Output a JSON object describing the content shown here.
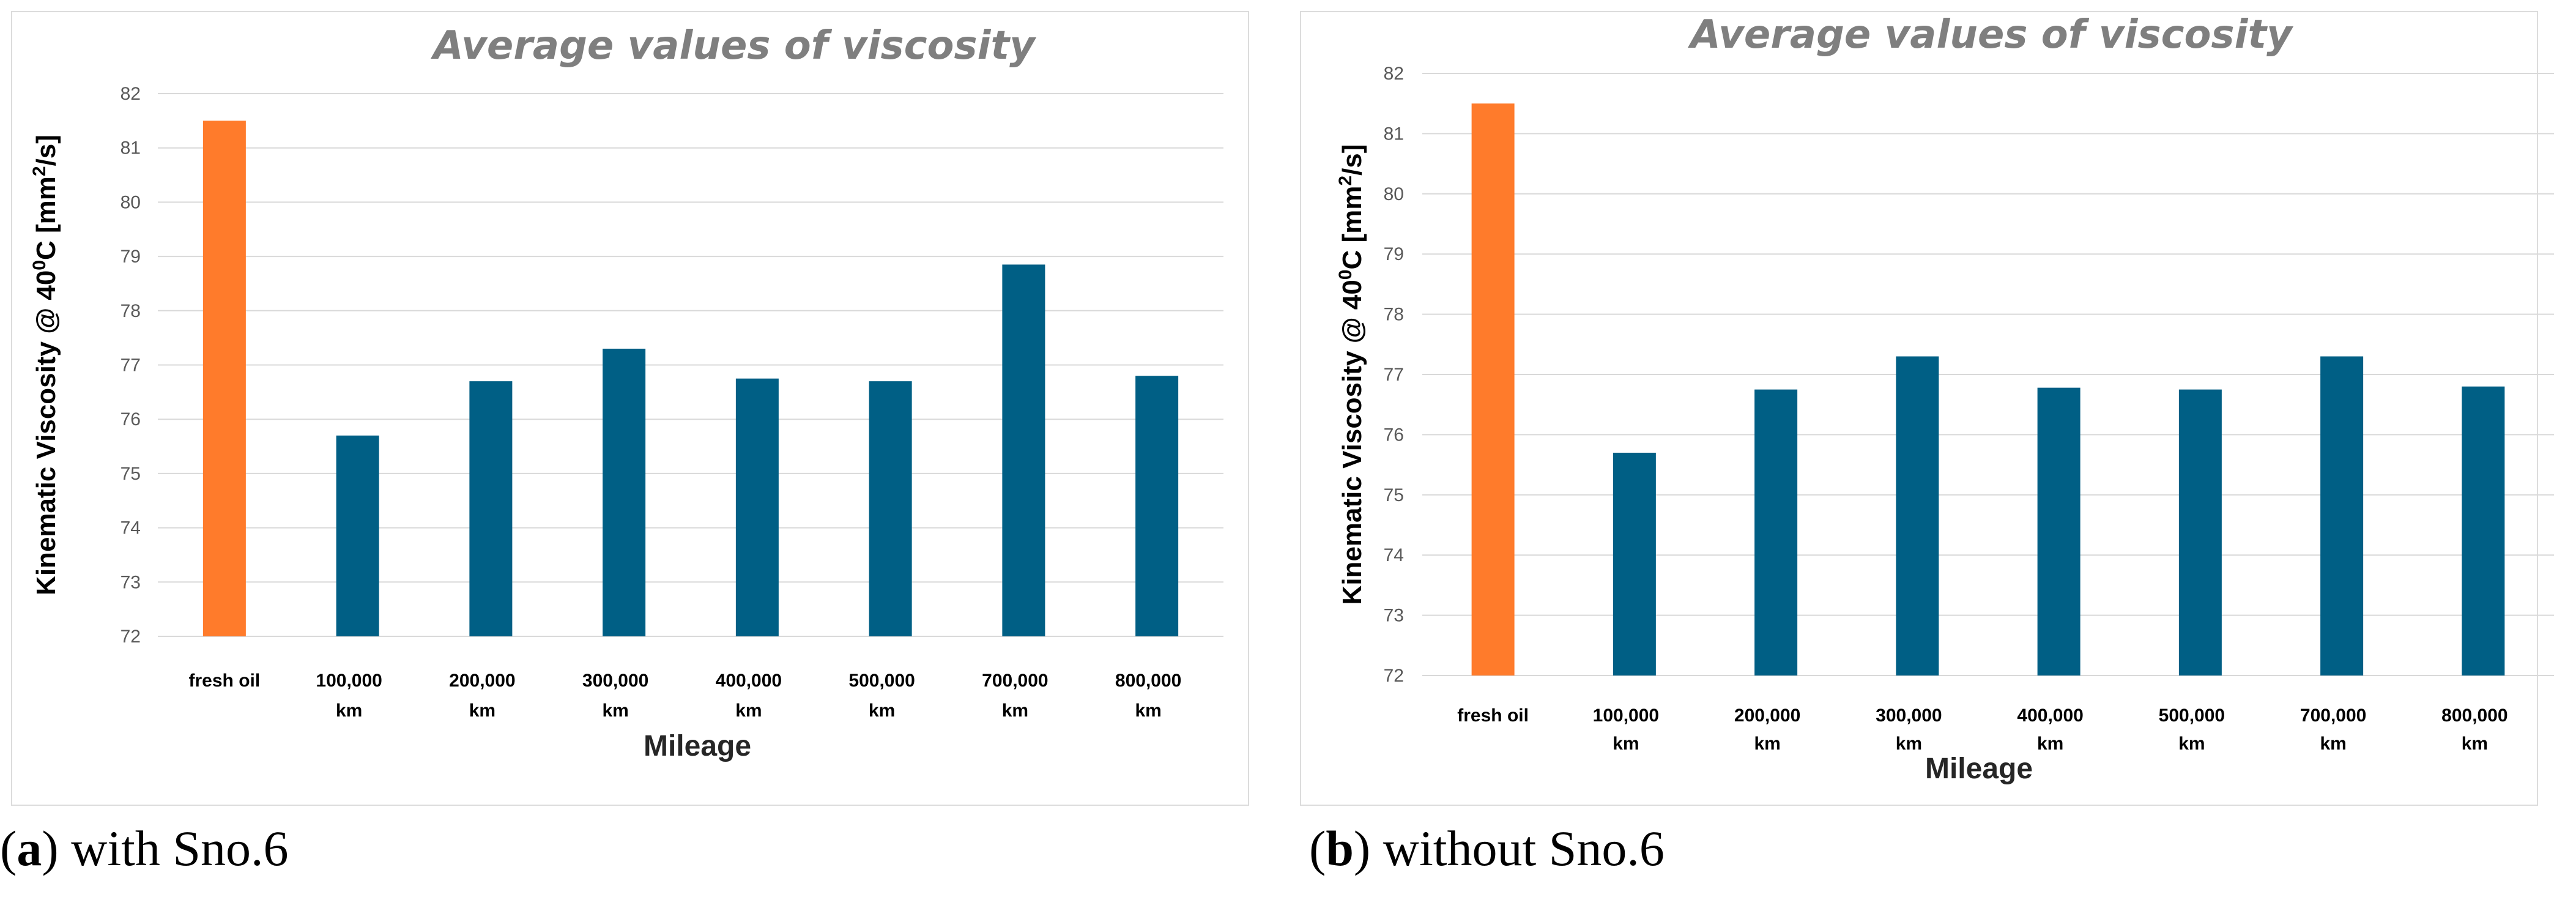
{
  "colors": {
    "fresh": "#ff7b2b",
    "used": "#005f85",
    "grid": "#d9d9d9"
  },
  "chart_data": [
    {
      "type": "bar",
      "title": "Average values of viscosity",
      "xlabel": "Mileage",
      "ylabel_parts": [
        "Kinematic Viscosity @ 40",
        "0",
        "C [mm",
        "2",
        "/s]"
      ],
      "caption": {
        "letter": "a",
        "text": ") with Sno.6"
      },
      "ylim": [
        72,
        82
      ],
      "yticks": [
        72,
        73,
        74,
        75,
        76,
        77,
        78,
        79,
        80,
        81,
        82
      ],
      "categories": [
        [
          "fresh oil"
        ],
        [
          "100,000",
          "km"
        ],
        [
          "200,000",
          "km"
        ],
        [
          "300,000",
          "km"
        ],
        [
          "400,000",
          "km"
        ],
        [
          "500,000",
          "km"
        ],
        [
          "700,000",
          "km"
        ],
        [
          "800,000",
          "km"
        ]
      ],
      "values": [
        81.5,
        75.7,
        76.7,
        77.3,
        76.75,
        76.7,
        78.85,
        76.8
      ]
    },
    {
      "type": "bar",
      "title": "Average values of viscosity",
      "xlabel": "Mileage",
      "ylabel_parts": [
        "Kinematic Viscosity @ 40",
        "0",
        "C [mm",
        "2",
        "/s]"
      ],
      "caption": {
        "letter": "b",
        "text": ") without Sno.6"
      },
      "ylim": [
        72,
        82
      ],
      "yticks": [
        72,
        73,
        74,
        75,
        76,
        77,
        78,
        79,
        80,
        81,
        82
      ],
      "categories": [
        [
          "fresh oil"
        ],
        [
          "100,000",
          "km"
        ],
        [
          "200,000",
          "km"
        ],
        [
          "300,000",
          "km"
        ],
        [
          "400,000",
          "km"
        ],
        [
          "500,000",
          "km"
        ],
        [
          "700,000",
          "km"
        ],
        [
          "800,000",
          "km"
        ]
      ],
      "values": [
        81.5,
        75.7,
        76.75,
        77.3,
        76.78,
        76.75,
        77.3,
        76.8
      ]
    }
  ]
}
